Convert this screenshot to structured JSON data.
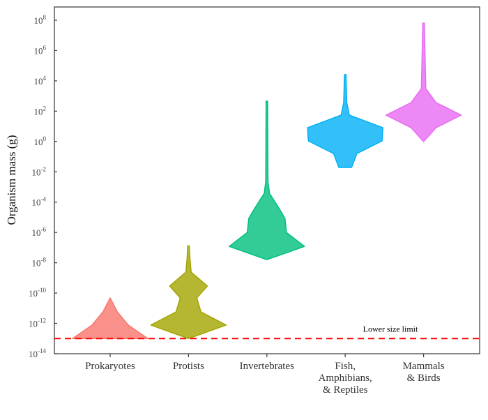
{
  "chart_data": {
    "type": "violin",
    "ylabel": "Organism mass (g)",
    "yscale": "log",
    "ylim": [
      1e-14,
      100000000.0
    ],
    "y_ticks": [
      "10^8",
      "10^6",
      "10^4",
      "10^2",
      "10^0",
      "10^-2",
      "10^-4",
      "10^-6",
      "10^-8",
      "10^-10",
      "10^-12",
      "10^-14"
    ],
    "grid": false,
    "categories": [
      {
        "label_lines": [
          "Prokaryotes"
        ],
        "color": "#F8766D"
      },
      {
        "label_lines": [
          "Protists"
        ],
        "color": "#A3A500"
      },
      {
        "label_lines": [
          "Invertebrates"
        ],
        "color": "#00BF7D"
      },
      {
        "label_lines": [
          "Fish,",
          "Amphibians,",
          "& Reptiles"
        ],
        "color": "#00B0F6"
      },
      {
        "label_lines": [
          "Mammals",
          "& Birds"
        ],
        "color": "#E76BF3"
      }
    ],
    "violins": [
      {
        "category": "Prokaryotes",
        "profile_mass_g": [
          1e-13,
          7.8e-13,
          5.8e-12,
          4.8e-11
        ],
        "relative_width": [
          1.0,
          0.48,
          0.19,
          0.0
        ]
      },
      {
        "category": "Protists",
        "profile_mass_g": [
          1e-13,
          7.8e-13,
          5.8e-12,
          4.8e-11,
          2.9e-10,
          2.4e-09,
          1.6e-08,
          1.3e-07
        ],
        "relative_width": [
          0.0,
          1.0,
          0.33,
          0.22,
          0.5,
          0.07,
          0.04,
          0.02
        ]
      },
      {
        "category": "Invertebrates",
        "profile_mass_g": [
          1.6e-08,
          1.2e-07,
          1e-06,
          8.5e-06,
          2.5e-05,
          0.00013,
          0.00038,
          0.0023,
          460
        ],
        "relative_width": [
          0.0,
          1.0,
          0.52,
          0.48,
          0.37,
          0.19,
          0.07,
          0.03,
          0.02
        ]
      },
      {
        "category": "Fish, Amphibians, & Reptiles",
        "profile_mass_g": [
          0.0195,
          0.16,
          1.1,
          8.1,
          55,
          370,
          26000
        ],
        "relative_width": [
          0.17,
          0.31,
          0.98,
          1.0,
          0.11,
          0.04,
          0.02
        ]
      },
      {
        "category": "Mammals & Birds",
        "profile_mass_g": [
          0.98,
          8.1,
          55,
          370,
          3100,
          65000000.0
        ],
        "relative_width": [
          0.0,
          0.33,
          1.0,
          0.33,
          0.06,
          0.02
        ]
      }
    ],
    "reference_line": {
      "label": "Lower size limit",
      "value_g": 1e-13,
      "color": "#FF0000",
      "style": "dashed"
    }
  }
}
